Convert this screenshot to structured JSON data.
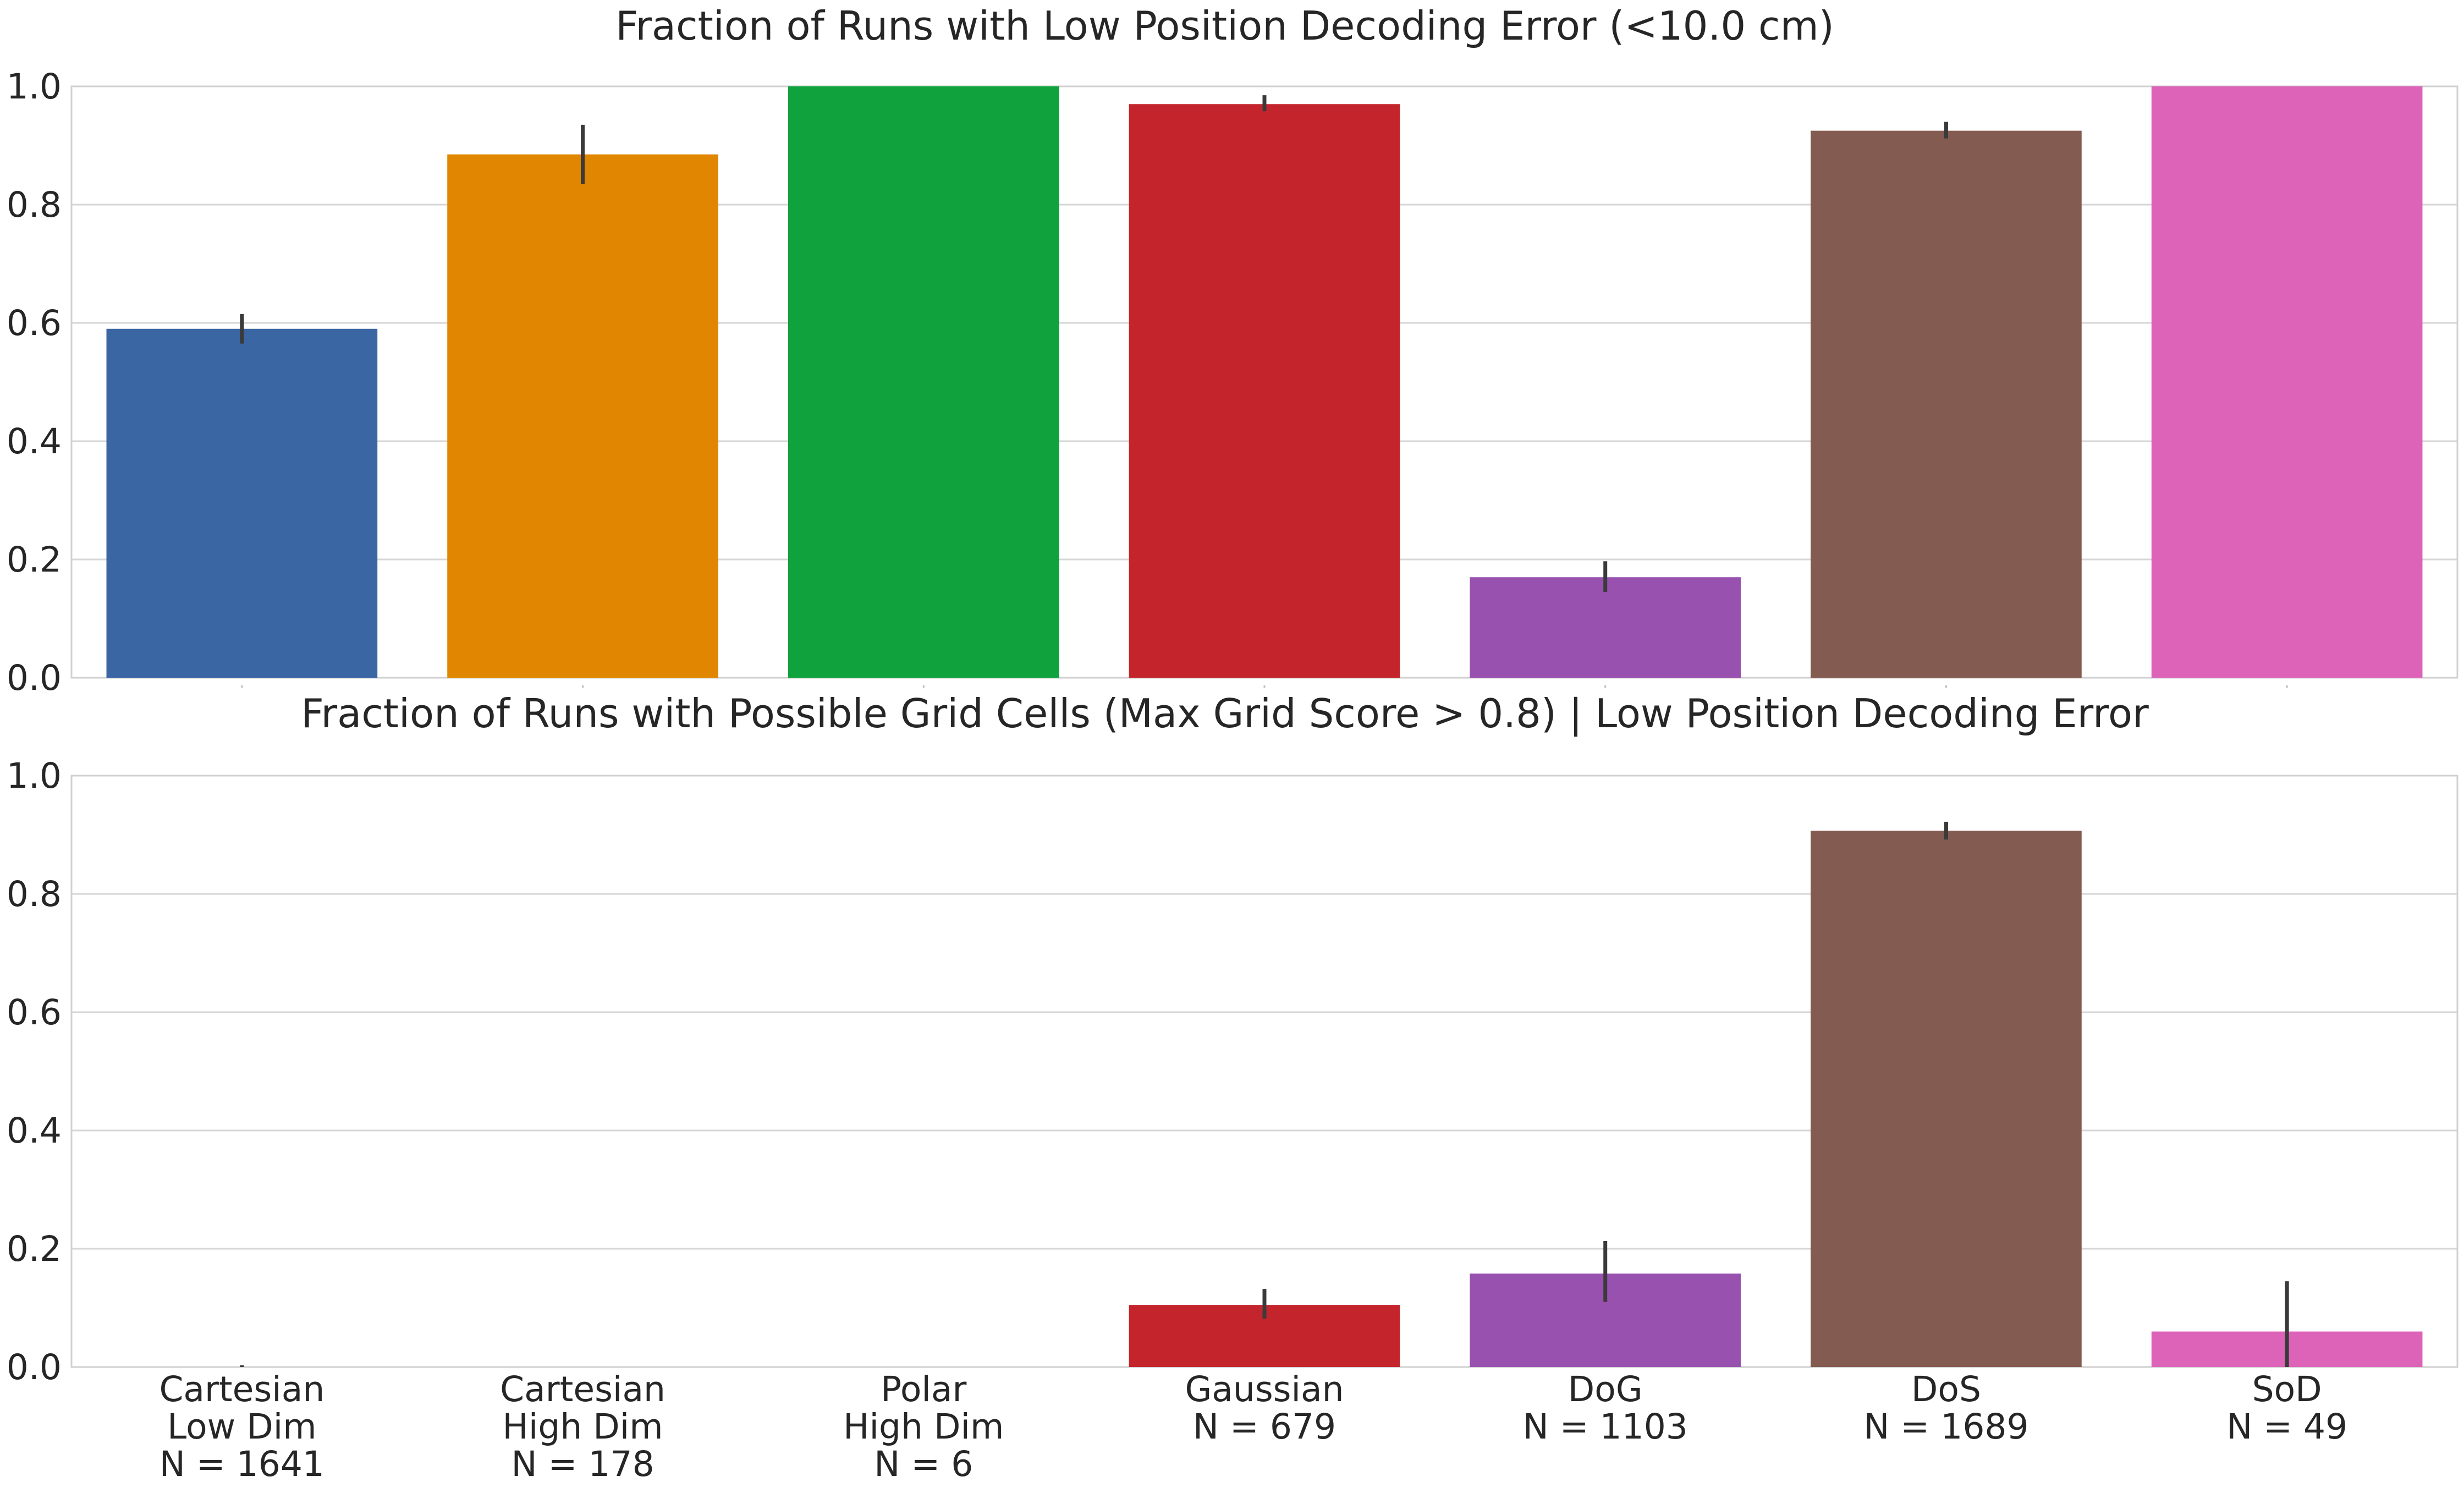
{
  "chart_data": [
    {
      "type": "bar",
      "title": "Fraction of Runs with Low Position Decoding Error (<10.0 cm)",
      "categories": [
        "Cartesian Low Dim",
        "Cartesian High Dim",
        "Polar High Dim",
        "Gaussian",
        "DoG",
        "DoS",
        "SoD"
      ],
      "values": [
        0.59,
        0.885,
        1.0,
        0.97,
        0.17,
        0.925,
        1.0
      ],
      "error_low": [
        0.565,
        0.835,
        1.0,
        0.958,
        0.145,
        0.912,
        1.0
      ],
      "error_high": [
        0.615,
        0.935,
        1.0,
        0.985,
        0.197,
        0.94,
        1.0
      ],
      "colors": [
        "#3a66a3",
        "#e08600",
        "#0fa23d",
        "#c4252c",
        "#9951b0",
        "#845b50",
        "#dc63b8"
      ],
      "ylim": [
        0,
        1.0
      ],
      "yticks": [
        "0.0",
        "0.2",
        "0.4",
        "0.6",
        "0.8",
        "1.0"
      ],
      "xlabel": "",
      "ylabel": "",
      "grid": true
    },
    {
      "type": "bar",
      "title": "Fraction of Runs with Possible Grid Cells (Max Grid Score > 0.8) | Low Position Decoding Error",
      "categories": [
        "Cartesian Low Dim",
        "Cartesian High Dim",
        "Polar High Dim",
        "Gaussian",
        "DoG",
        "DoS",
        "SoD"
      ],
      "values": [
        0.0,
        0.0,
        0.0,
        0.105,
        0.158,
        0.907,
        0.06
      ],
      "error_low": [
        0.0,
        0.0,
        0.0,
        0.082,
        0.11,
        0.892,
        0.0
      ],
      "error_high": [
        0.003,
        0.0,
        0.0,
        0.132,
        0.213,
        0.922,
        0.145
      ],
      "colors": [
        "#3a66a3",
        "#e08600",
        "#0fa23d",
        "#c4252c",
        "#9951b0",
        "#845b50",
        "#dc63b8"
      ],
      "ylim": [
        0,
        1.0
      ],
      "yticks": [
        "0.0",
        "0.2",
        "0.4",
        "0.6",
        "0.8",
        "1.0"
      ],
      "tick_labels": [
        [
          "Cartesian",
          "Low Dim",
          "N = 1641"
        ],
        [
          "Cartesian",
          "High Dim",
          "N = 178"
        ],
        [
          "Polar",
          "High Dim",
          "N = 6"
        ],
        [
          "Gaussian",
          "N = 679"
        ],
        [
          "DoG",
          "N = 1103"
        ],
        [
          "DoS",
          "N = 1689"
        ],
        [
          "SoD",
          "N = 49"
        ]
      ],
      "xlabel": "",
      "ylabel": "",
      "grid": true
    }
  ]
}
